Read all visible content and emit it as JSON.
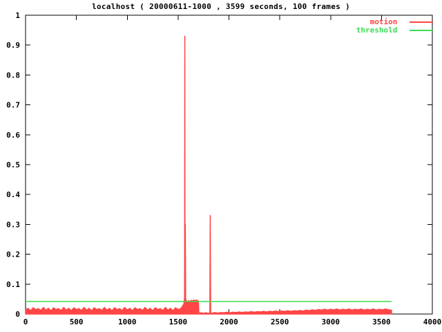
{
  "title": "localhost ( 20000611-1000 , 3599 seconds, 100 frames )",
  "legend": {
    "position": "top-right",
    "items": [
      {
        "label": "motion",
        "color": "#ff4545"
      },
      {
        "label": "threshold",
        "color": "#3ddc52"
      }
    ]
  },
  "colors": {
    "background": "#ffffff",
    "axis": "#000000",
    "motion": "#ff4545",
    "threshold": "#3ddc52"
  },
  "chart_data": {
    "type": "line",
    "title": "localhost ( 20000611-1000 , 3599 seconds, 100 frames )",
    "xlabel": "",
    "ylabel": "",
    "x_range": [
      0,
      4000
    ],
    "y_range": [
      0,
      1
    ],
    "grid": false,
    "legend_position": "top-right",
    "x_ticks": [
      {
        "value": 0,
        "label": "0"
      },
      {
        "value": 500,
        "label": "500"
      },
      {
        "value": 1000,
        "label": "1000"
      },
      {
        "value": 1500,
        "label": "1500"
      },
      {
        "value": 2000,
        "label": "2000"
      },
      {
        "value": 2500,
        "label": "2500"
      },
      {
        "value": 3000,
        "label": "3000"
      },
      {
        "value": 3500,
        "label": "3500"
      },
      {
        "value": 4000,
        "label": "4000"
      }
    ],
    "y_ticks": [
      {
        "value": 0,
        "label": "0"
      },
      {
        "value": 0.1,
        "label": "0.1"
      },
      {
        "value": 0.2,
        "label": "0.2"
      },
      {
        "value": 0.3,
        "label": "0.3"
      },
      {
        "value": 0.4,
        "label": "0.4"
      },
      {
        "value": 0.5,
        "label": "0.5"
      },
      {
        "value": 0.6,
        "label": "0.6"
      },
      {
        "value": 0.7,
        "label": "0.7"
      },
      {
        "value": 0.8,
        "label": "0.8"
      },
      {
        "value": 0.9,
        "label": "0.9"
      },
      {
        "value": 1,
        "label": "1"
      }
    ],
    "series": [
      {
        "name": "motion",
        "color": "#ff4545",
        "style": "filled-line",
        "points": [
          [
            0,
            0.013
          ],
          [
            25,
            0.019
          ],
          [
            50,
            0.011
          ],
          [
            75,
            0.021
          ],
          [
            100,
            0.015
          ],
          [
            125,
            0.018
          ],
          [
            150,
            0.012
          ],
          [
            175,
            0.022
          ],
          [
            200,
            0.013
          ],
          [
            225,
            0.019
          ],
          [
            250,
            0.011
          ],
          [
            275,
            0.021
          ],
          [
            300,
            0.015
          ],
          [
            325,
            0.018
          ],
          [
            350,
            0.012
          ],
          [
            375,
            0.022
          ],
          [
            400,
            0.013
          ],
          [
            425,
            0.019
          ],
          [
            450,
            0.011
          ],
          [
            475,
            0.021
          ],
          [
            500,
            0.015
          ],
          [
            525,
            0.018
          ],
          [
            550,
            0.012
          ],
          [
            575,
            0.022
          ],
          [
            600,
            0.013
          ],
          [
            625,
            0.019
          ],
          [
            650,
            0.011
          ],
          [
            675,
            0.021
          ],
          [
            700,
            0.015
          ],
          [
            725,
            0.018
          ],
          [
            750,
            0.012
          ],
          [
            775,
            0.022
          ],
          [
            800,
            0.013
          ],
          [
            825,
            0.019
          ],
          [
            850,
            0.011
          ],
          [
            875,
            0.021
          ],
          [
            900,
            0.015
          ],
          [
            925,
            0.018
          ],
          [
            950,
            0.012
          ],
          [
            975,
            0.022
          ],
          [
            1000,
            0.013
          ],
          [
            1025,
            0.019
          ],
          [
            1050,
            0.011
          ],
          [
            1075,
            0.021
          ],
          [
            1100,
            0.015
          ],
          [
            1125,
            0.018
          ],
          [
            1150,
            0.012
          ],
          [
            1175,
            0.022
          ],
          [
            1200,
            0.013
          ],
          [
            1225,
            0.019
          ],
          [
            1250,
            0.011
          ],
          [
            1275,
            0.021
          ],
          [
            1300,
            0.015
          ],
          [
            1325,
            0.018
          ],
          [
            1350,
            0.012
          ],
          [
            1375,
            0.022
          ],
          [
            1400,
            0.013
          ],
          [
            1425,
            0.019
          ],
          [
            1450,
            0.011
          ],
          [
            1475,
            0.021
          ],
          [
            1500,
            0.015
          ],
          [
            1525,
            0.018
          ],
          [
            1540,
            0.024
          ],
          [
            1548,
            0.03
          ],
          [
            1552,
            0.026
          ],
          [
            1557,
            0.034
          ],
          [
            1561,
            0.048
          ],
          [
            1564,
            0.05
          ],
          [
            1566,
            0.93
          ],
          [
            1568,
            0.08
          ],
          [
            1571,
            0.3
          ],
          [
            1574,
            0.052
          ],
          [
            1580,
            0.044
          ],
          [
            1590,
            0.04
          ],
          [
            1602,
            0.045
          ],
          [
            1615,
            0.041
          ],
          [
            1628,
            0.046
          ],
          [
            1641,
            0.043
          ],
          [
            1654,
            0.047
          ],
          [
            1667,
            0.044
          ],
          [
            1680,
            0.047
          ],
          [
            1692,
            0.045
          ],
          [
            1700,
            0.042
          ],
          [
            1704,
            0.005
          ],
          [
            1715,
            0.003
          ],
          [
            1730,
            0.004
          ],
          [
            1750,
            0.002
          ],
          [
            1770,
            0.004
          ],
          [
            1790,
            0.003
          ],
          [
            1805,
            0.002
          ],
          [
            1812,
            0.004
          ],
          [
            1816,
            0.33
          ],
          [
            1820,
            0.004
          ],
          [
            1835,
            0.003
          ],
          [
            1860,
            0.005
          ],
          [
            1890,
            0.003
          ],
          [
            1920,
            0.005
          ],
          [
            1950,
            0.004
          ],
          [
            1980,
            0.006
          ],
          [
            2010,
            0.004
          ],
          [
            2040,
            0.006
          ],
          [
            2070,
            0.005
          ],
          [
            2100,
            0.007
          ],
          [
            2130,
            0.005
          ],
          [
            2160,
            0.007
          ],
          [
            2190,
            0.006
          ],
          [
            2220,
            0.008
          ],
          [
            2250,
            0.006
          ],
          [
            2280,
            0.008
          ],
          [
            2310,
            0.007
          ],
          [
            2340,
            0.009
          ],
          [
            2370,
            0.007
          ],
          [
            2400,
            0.009
          ],
          [
            2430,
            0.008
          ],
          [
            2460,
            0.01
          ],
          [
            2490,
            0.008
          ],
          [
            2520,
            0.01
          ],
          [
            2550,
            0.009
          ],
          [
            2580,
            0.011
          ],
          [
            2610,
            0.009
          ],
          [
            2640,
            0.011
          ],
          [
            2670,
            0.01
          ],
          [
            2700,
            0.012
          ],
          [
            2730,
            0.01
          ],
          [
            2760,
            0.013
          ],
          [
            2790,
            0.011
          ],
          [
            2820,
            0.014
          ],
          [
            2850,
            0.012
          ],
          [
            2880,
            0.015
          ],
          [
            2910,
            0.013
          ],
          [
            2940,
            0.016
          ],
          [
            2970,
            0.013
          ],
          [
            3000,
            0.016
          ],
          [
            3030,
            0.014
          ],
          [
            3060,
            0.017
          ],
          [
            3090,
            0.013
          ],
          [
            3120,
            0.016
          ],
          [
            3150,
            0.014
          ],
          [
            3180,
            0.017
          ],
          [
            3210,
            0.013
          ],
          [
            3240,
            0.016
          ],
          [
            3270,
            0.014
          ],
          [
            3300,
            0.017
          ],
          [
            3330,
            0.013
          ],
          [
            3360,
            0.016
          ],
          [
            3390,
            0.014
          ],
          [
            3420,
            0.017
          ],
          [
            3450,
            0.013
          ],
          [
            3480,
            0.016
          ],
          [
            3510,
            0.014
          ],
          [
            3540,
            0.017
          ],
          [
            3570,
            0.014
          ],
          [
            3599,
            0.013
          ]
        ]
      },
      {
        "name": "threshold",
        "color": "#3ddc52",
        "style": "line",
        "points": [
          [
            0,
            0.042
          ],
          [
            3599,
            0.042
          ]
        ]
      }
    ]
  }
}
